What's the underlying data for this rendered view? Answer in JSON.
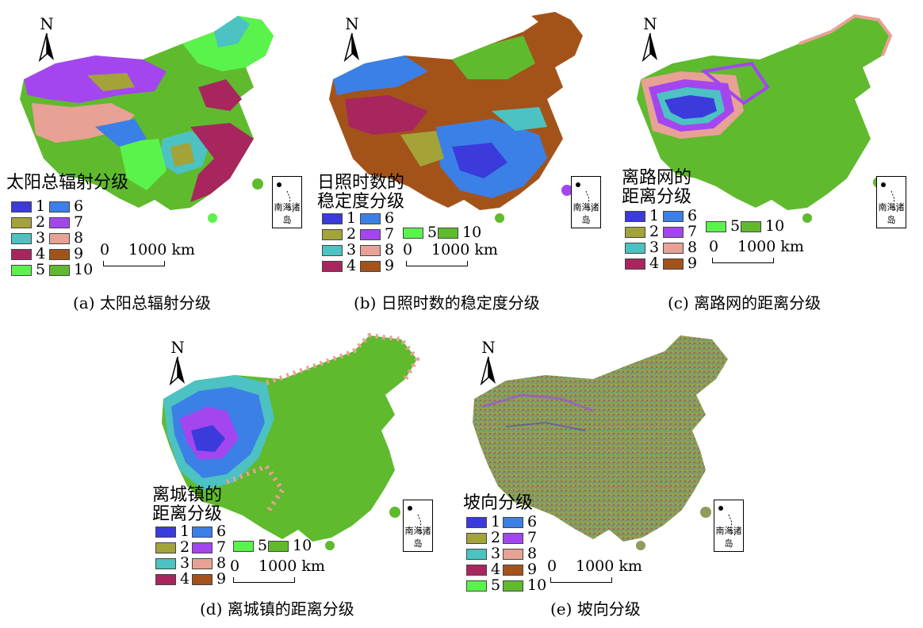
{
  "north_label": "N",
  "inset_label": "南海诸岛",
  "scale_zero": "0",
  "scale_label": "1000 km",
  "legend_numbers": [
    "1",
    "2",
    "3",
    "4",
    "5",
    "6",
    "7",
    "8",
    "9",
    "10"
  ],
  "class_colors": {
    "1": "#3b3bdc",
    "2": "#a3a33a",
    "3": "#4cc2c2",
    "4": "#a8265e",
    "5": "#5af34c",
    "6": "#3b80e6",
    "7": "#a346f0",
    "8": "#e8a195",
    "9": "#a3531a",
    "10": "#5fba2e"
  },
  "panels": {
    "a": {
      "legend_title": "太阳总辐射分级",
      "caption": "(a) 太阳总辐射分级"
    },
    "b": {
      "legend_title_line1": "日照时数的",
      "legend_title_line2": "稳定度分级",
      "caption": "(b) 日照时数的稳定度分级"
    },
    "c": {
      "legend_title_line1": "离路网的",
      "legend_title_line2": "距离分级",
      "caption": "(c) 离路网的距离分级"
    },
    "d": {
      "legend_title_line1": "离城镇的",
      "legend_title_line2": "距离分级",
      "caption": "(d) 离城镇的距离分级"
    },
    "e": {
      "legend_title": "坡向分级",
      "caption": "(e) 坡向分级"
    }
  }
}
